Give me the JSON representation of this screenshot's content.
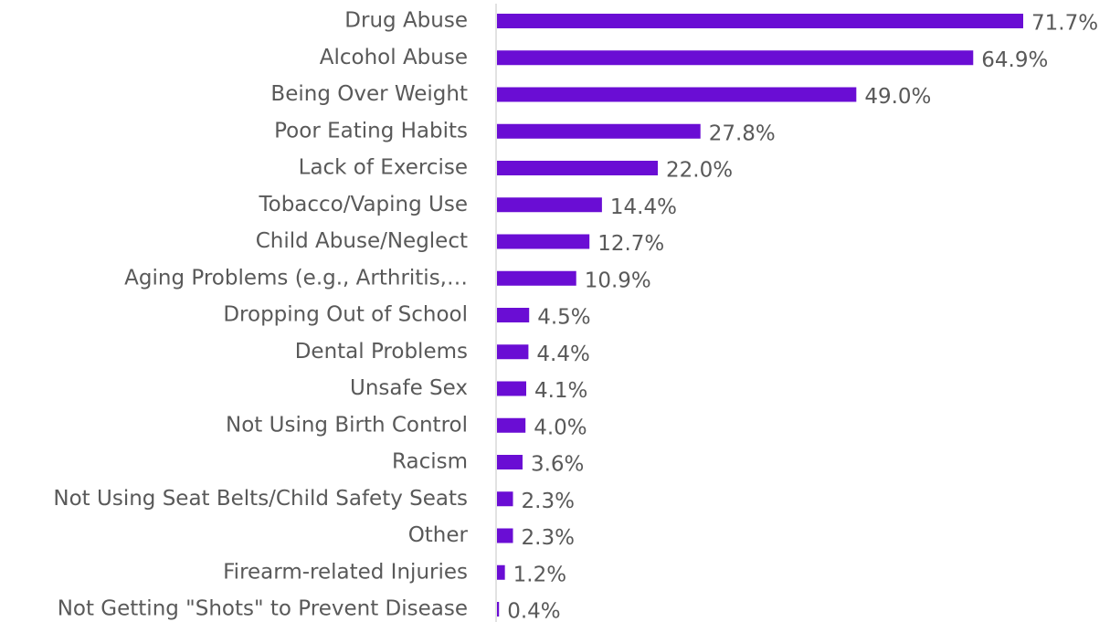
{
  "chart_data": {
    "type": "bar",
    "orientation": "horizontal",
    "color": "#6a0dd4",
    "categories": [
      "Drug Abuse",
      "Alcohol Abuse",
      "Being Over Weight",
      "Poor Eating Habits",
      "Lack of Exercise",
      "Tobacco/Vaping Use",
      "Child Abuse/Neglect",
      "Aging Problems (e.g., Arthritis,…",
      "Dropping Out of School",
      "Dental Problems",
      "Unsafe Sex",
      "Not Using Birth Control",
      "Racism",
      "Not Using Seat Belts/Child Safety Seats",
      "Other",
      "Firearm-related Injuries",
      "Not Getting \"Shots\" to Prevent Disease"
    ],
    "values": [
      71.7,
      64.9,
      49.0,
      27.8,
      22.0,
      14.4,
      12.7,
      10.9,
      4.5,
      4.4,
      4.1,
      4.0,
      3.6,
      2.3,
      2.3,
      1.2,
      0.4
    ],
    "value_labels": [
      "71.7%",
      "64.9%",
      "49.0%",
      "27.8%",
      "22.0%",
      "14.4%",
      "12.7%",
      "10.9%",
      "4.5%",
      "4.4%",
      "4.1%",
      "4.0%",
      "3.6%",
      "2.3%",
      "2.3%",
      "1.2%",
      "0.4%"
    ]
  }
}
